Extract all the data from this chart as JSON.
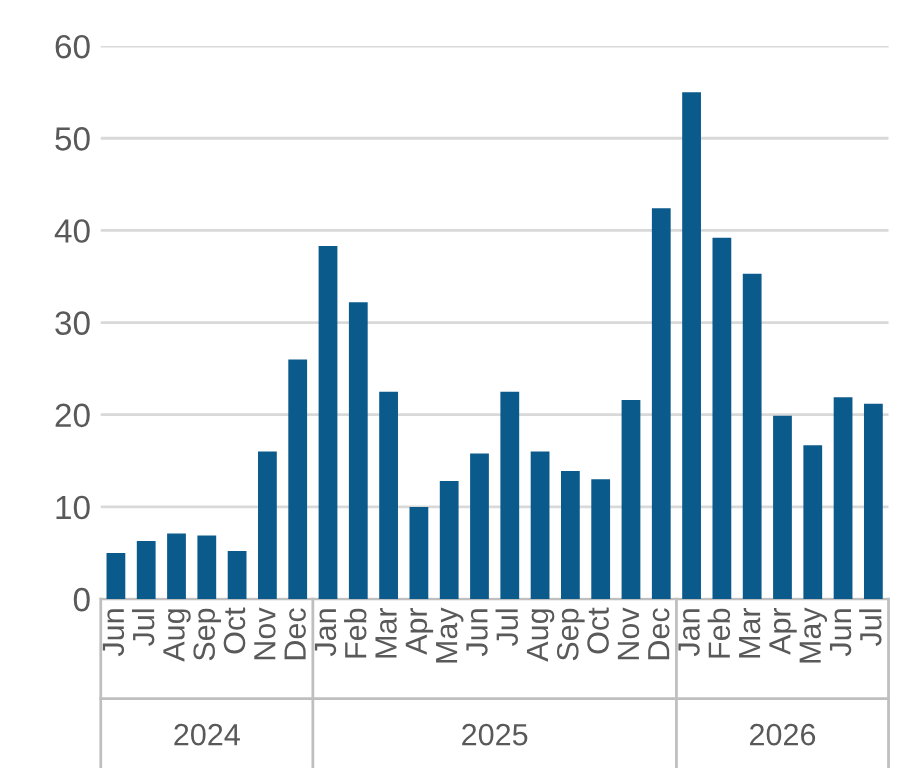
{
  "chart_data": {
    "type": "bar",
    "categories": [
      "Jun",
      "Jul",
      "Aug",
      "Sep",
      "Oct",
      "Nov",
      "Dec",
      "Jan",
      "Feb",
      "Mar",
      "Apr",
      "May",
      "Jun",
      "Jul",
      "Aug",
      "Sep",
      "Oct",
      "Nov",
      "Dec",
      "Jan",
      "Feb",
      "Mar",
      "Apr",
      "May",
      "Jun",
      "Jul"
    ],
    "values": [
      5.0,
      6.3,
      7.1,
      6.9,
      5.2,
      16.0,
      26.0,
      38.3,
      32.2,
      22.5,
      10.0,
      12.8,
      15.8,
      22.5,
      16.0,
      13.9,
      13.0,
      21.6,
      42.4,
      55.0,
      39.2,
      35.3,
      19.9,
      16.7,
      21.9,
      21.2
    ],
    "color": "#0b5a8c",
    "ylim": [
      0,
      60
    ],
    "yticks": [
      0,
      10,
      20,
      30,
      40,
      50,
      60
    ],
    "grid": "y",
    "annotations": [
      "2024",
      "2025",
      "2026"
    ]
  }
}
